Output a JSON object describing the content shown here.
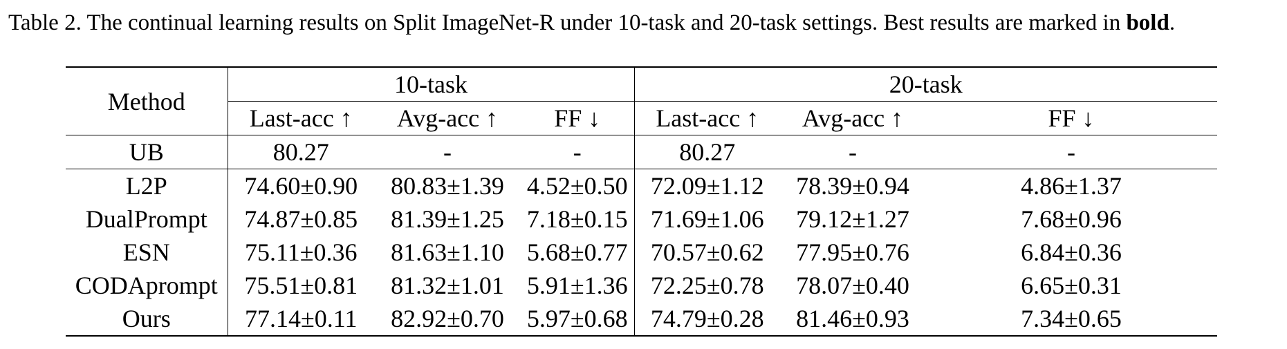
{
  "caption": {
    "prefix": "Table 2. The continual learning results on Split ImageNet-R under 10-task and 20-task settings. Best results are marked in ",
    "bold_word": "bold",
    "suffix": "."
  },
  "table": {
    "method_header": "Method",
    "groups": [
      "10-task",
      "20-task"
    ],
    "metrics": [
      "Last-acc ↑",
      "Avg-acc ↑",
      "FF ↓",
      "Last-acc ↑",
      "Avg-acc ↑",
      "FF ↓"
    ],
    "upper_bound": {
      "method": "UB",
      "values": [
        "80.27",
        "-",
        "-",
        "80.27",
        "-",
        "-"
      ]
    },
    "rows": [
      {
        "method": "L2P",
        "values": [
          "74.60±0.90",
          "80.83±1.39",
          "4.52±0.50",
          "72.09±1.12",
          "78.39±0.94",
          "4.86±1.37"
        ]
      },
      {
        "method": "DualPrompt",
        "values": [
          "74.87±0.85",
          "81.39±1.25",
          "7.18±0.15",
          "71.69±1.06",
          "79.12±1.27",
          "7.68±0.96"
        ]
      },
      {
        "method": "ESN",
        "values": [
          "75.11±0.36",
          "81.63±1.10",
          "5.68±0.77",
          "70.57±0.62",
          "77.95±0.76",
          "6.84±0.36"
        ]
      },
      {
        "method": "CODAprompt",
        "values": [
          "75.51±0.81",
          "81.32±1.01",
          "5.91±1.36",
          "72.25±0.78",
          "78.07±0.40",
          "6.65±0.31"
        ]
      },
      {
        "method": "Ours",
        "values": [
          "77.14±0.11",
          "82.92±0.70",
          "5.97±0.68",
          "74.79±0.28",
          "81.46±0.93",
          "7.34±0.65"
        ]
      }
    ]
  }
}
